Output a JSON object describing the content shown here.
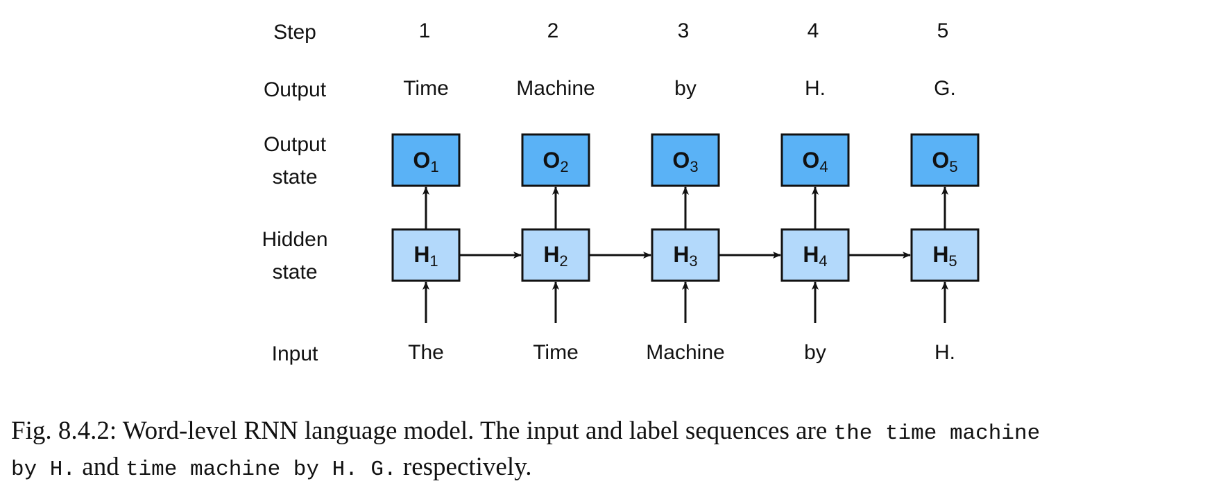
{
  "rows": {
    "step": "Step",
    "output": "Output",
    "output_state": [
      "Output",
      "state"
    ],
    "hidden_state": [
      "Hidden",
      "state"
    ],
    "input": "Input"
  },
  "steps": [
    "1",
    "2",
    "3",
    "4",
    "5"
  ],
  "outputs": [
    "Time",
    "Machine",
    "by",
    "H.",
    "G."
  ],
  "inputs": [
    "The",
    "Time",
    "Machine",
    "by",
    "H."
  ],
  "output_boxes": [
    {
      "letter": "O",
      "sub": "1"
    },
    {
      "letter": "O",
      "sub": "2"
    },
    {
      "letter": "O",
      "sub": "3"
    },
    {
      "letter": "O",
      "sub": "4"
    },
    {
      "letter": "O",
      "sub": "5"
    }
  ],
  "hidden_boxes": [
    {
      "letter": "H",
      "sub": "1"
    },
    {
      "letter": "H",
      "sub": "2"
    },
    {
      "letter": "H",
      "sub": "3"
    },
    {
      "letter": "H",
      "sub": "4"
    },
    {
      "letter": "H",
      "sub": "5"
    }
  ],
  "colors": {
    "output_box": "#5ab2f6",
    "hidden_box": "#b3d9fb",
    "stroke": "#111111"
  },
  "caption": {
    "prefix": "Fig. 8.4.2: Word-level RNN language model. The input and label sequences are ",
    "seq1a": "the time machine",
    "seq1b": "by H.",
    "and": " and ",
    "seq2": "time machine by H. G.",
    "suffix": " respectively."
  }
}
